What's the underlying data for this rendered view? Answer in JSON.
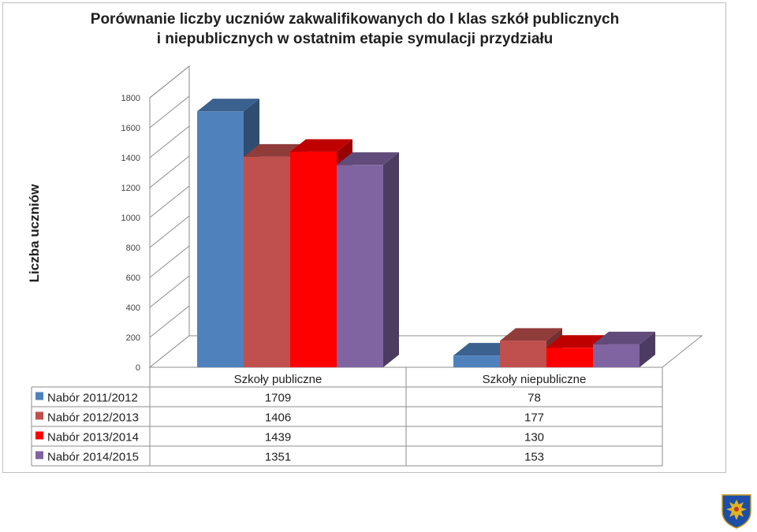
{
  "chart_data": {
    "type": "bar",
    "title_line1": "Porównanie liczby uczniów zakwalifikowanych do I klas szkół publicznych",
    "title_line2": "i niepublicznych w ostatnim etapie symulacji przydziału",
    "ylabel": "Liczba uczniów",
    "xlabel": "",
    "ylim": [
      0,
      1800
    ],
    "yticks": [
      0,
      200,
      400,
      600,
      800,
      1000,
      1200,
      1400,
      1600,
      1800
    ],
    "grid": true,
    "categories": [
      "Szkoły publiczne",
      "Szkoły niepubliczne"
    ],
    "series": [
      {
        "name": "Nabór 2011/2012",
        "values": [
          1709,
          78
        ],
        "color": "#4f81bd"
      },
      {
        "name": "Nabór 2012/2013",
        "values": [
          1406,
          177
        ],
        "color": "#c0504d"
      },
      {
        "name": "Nabór 2013/2014",
        "values": [
          1439,
          130
        ],
        "color": "#ff0000"
      },
      {
        "name": "Nabór 2014/2015",
        "values": [
          1351,
          153
        ],
        "color": "#8064a2"
      }
    ],
    "legend": "data-table",
    "style": "3d-clustered-column"
  },
  "logo_icon": "coat-of-arms-icon"
}
